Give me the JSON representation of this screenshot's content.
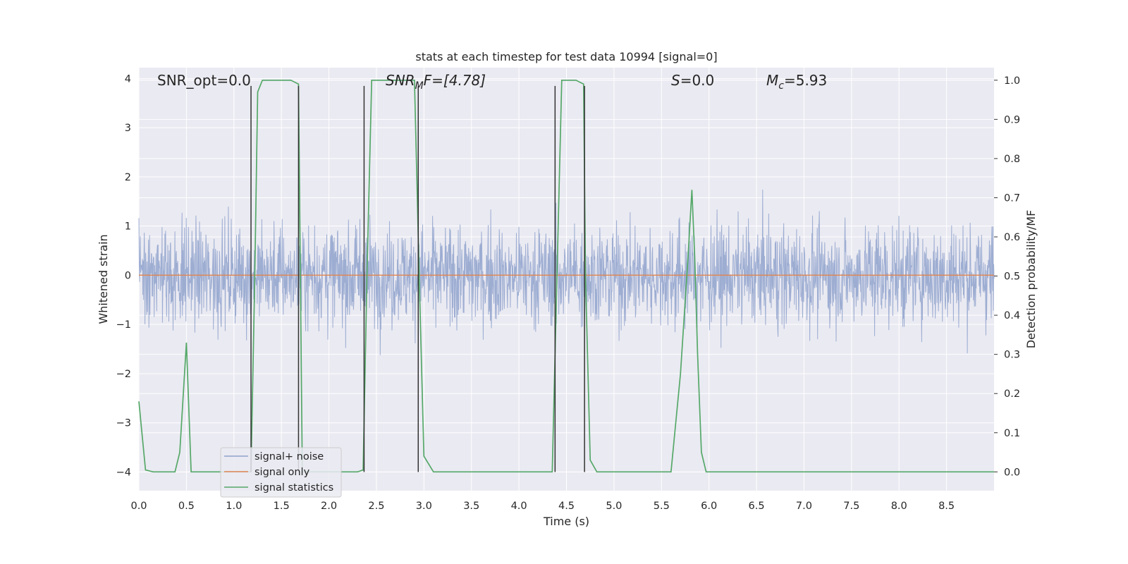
{
  "chart_data": {
    "type": "line",
    "title": "stats at each timestep for test data 10994 [signal=0]",
    "xlabel": "Time (s)",
    "ylabel": "Whitened strain",
    "ylabel_right": "Detection probability/MF",
    "xlim": [
      0,
      9.0
    ],
    "ylim": [
      -4.38,
      4.22
    ],
    "ylim_right": [
      -0.048,
      1.032
    ],
    "grid": true,
    "x_ticks": [
      "0.0",
      "0.5",
      "1.0",
      "1.5",
      "2.0",
      "2.5",
      "3.0",
      "3.5",
      "4.0",
      "4.5",
      "5.0",
      "5.5",
      "6.0",
      "6.5",
      "7.0",
      "7.5",
      "8.0",
      "8.5"
    ],
    "y_ticks": [
      "4",
      "3",
      "2",
      "1",
      "0",
      "−1",
      "−2",
      "−3",
      "−4"
    ],
    "y_ticks_right": [
      "1.0",
      "0.9",
      "0.8",
      "0.7",
      "0.6",
      "0.5",
      "0.4",
      "0.3",
      "0.2",
      "0.1",
      "0.0"
    ],
    "annotations": {
      "snr_opt": "SNR_opt=0.0",
      "snr_mf_main": "SNR",
      "snr_mf_sub": "M",
      "snr_mf_rest": "F=[4.78]",
      "s_main": "S",
      "s_rest": "=0.0",
      "mc_main": "M",
      "mc_sub": "c",
      "mc_rest": "=5.93"
    },
    "legend_position": "lower-left",
    "series": [
      {
        "name": "signal+ noise",
        "axis": "left",
        "color": "#8fa2cc",
        "description_stats": {
          "typical_range": [
            -2.2,
            2.4
          ],
          "peak_max": 3.85,
          "peak_min": -4.0
        }
      },
      {
        "name": "signal only",
        "axis": "left",
        "color": "#dd8452",
        "x": [
          0,
          9.0
        ],
        "values": [
          0,
          0
        ]
      },
      {
        "name": "signal statistics",
        "axis": "right",
        "color": "#55a868",
        "x": [
          0.0,
          0.07,
          0.15,
          0.25,
          0.38,
          0.43,
          0.5,
          0.55,
          0.6,
          0.9,
          1.1,
          1.18,
          1.22,
          1.25,
          1.3,
          1.4,
          1.6,
          1.68,
          1.7,
          1.72,
          1.8,
          2.0,
          2.2,
          2.3,
          2.36,
          2.4,
          2.45,
          2.5,
          2.7,
          2.9,
          2.95,
          3.0,
          3.1,
          3.5,
          4.0,
          4.35,
          4.4,
          4.45,
          4.6,
          4.68,
          4.7,
          4.75,
          4.82,
          5.0,
          5.3,
          5.6,
          5.7,
          5.78,
          5.82,
          5.85,
          5.88,
          5.92,
          5.97,
          6.2,
          6.5,
          6.8,
          7.0,
          7.5,
          8.0,
          8.5,
          9.0
        ],
        "values": [
          0.18,
          0.005,
          0.0,
          0.0,
          0.0,
          0.05,
          0.33,
          0.0,
          0.0,
          0.0,
          0.0,
          0.0,
          0.5,
          0.97,
          1.0,
          1.0,
          1.0,
          0.99,
          0.5,
          0.0,
          0.0,
          0.0,
          0.0,
          0.0,
          0.005,
          0.5,
          1.0,
          1.0,
          1.0,
          1.0,
          0.5,
          0.04,
          0.0,
          0.0,
          0.0,
          0.0,
          0.5,
          1.0,
          1.0,
          0.99,
          0.5,
          0.03,
          0.0,
          0.0,
          0.0,
          0.0,
          0.25,
          0.55,
          0.72,
          0.55,
          0.3,
          0.05,
          0.0,
          0.0,
          0.0,
          0.0,
          0.0,
          0.0,
          0.0,
          0.0,
          0.0
        ]
      }
    ],
    "vertical_markers": {
      "color": "#333333",
      "x": [
        1.18,
        1.68,
        2.37,
        2.94,
        4.38,
        4.69
      ],
      "y_range": [
        -4.0,
        3.85
      ]
    }
  },
  "legend": {
    "items": [
      {
        "label": "signal+ noise",
        "color": "#8fa2cc"
      },
      {
        "label": "signal only",
        "color": "#dd8452"
      },
      {
        "label": "signal statistics",
        "color": "#55a868"
      }
    ]
  }
}
